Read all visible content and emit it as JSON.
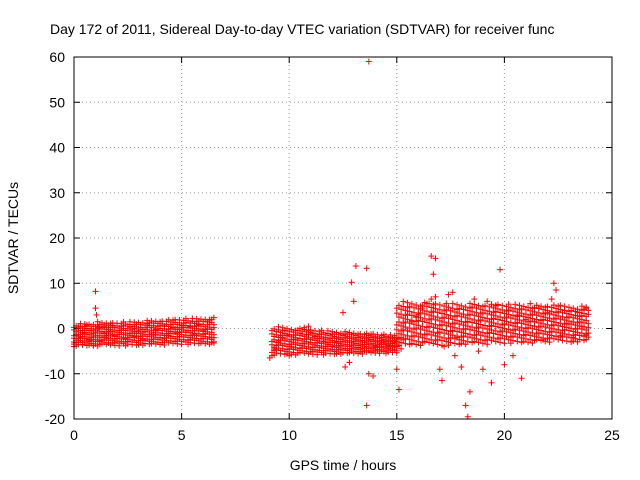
{
  "chart_data": {
    "type": "scatter",
    "title": "Day 172 of 2011, Sidereal Day-to-day VTEC variation (SDTVAR) for receiver func",
    "xlabel": "GPS time / hours",
    "ylabel": "SDTVAR / TECUs",
    "xlim": [
      0,
      25
    ],
    "ylim": [
      -20,
      60
    ],
    "xticks": [
      0,
      5,
      10,
      15,
      20,
      25
    ],
    "yticks": [
      -20,
      -10,
      0,
      10,
      20,
      30,
      40,
      50,
      60
    ],
    "grid": true,
    "marker": "+",
    "color": "#ff0000",
    "series": [
      {
        "name": "SDTVAR",
        "points": [
          [
            0.0,
            -3.0
          ],
          [
            0.1,
            -1.5
          ],
          [
            0.2,
            0.5
          ],
          [
            0.3,
            -2.0
          ],
          [
            0.4,
            -3.5
          ],
          [
            0.5,
            -1.0
          ],
          [
            0.6,
            0.8
          ],
          [
            0.7,
            -2.5
          ],
          [
            0.8,
            -0.5
          ],
          [
            0.9,
            -3.8
          ],
          [
            1.0,
            8.2
          ],
          [
            1.0,
            4.5
          ],
          [
            1.05,
            3.0
          ],
          [
            1.1,
            1.5
          ],
          [
            1.15,
            0.2
          ],
          [
            1.2,
            -2.8
          ],
          [
            1.3,
            -1.0
          ],
          [
            1.4,
            0.5
          ],
          [
            1.5,
            -2.0
          ],
          [
            1.6,
            -3.2
          ],
          [
            1.7,
            -0.8
          ],
          [
            1.8,
            0.6
          ],
          [
            1.9,
            -1.5
          ],
          [
            2.0,
            -2.8
          ],
          [
            2.2,
            -0.4
          ],
          [
            2.4,
            -2.2
          ],
          [
            2.6,
            0.3
          ],
          [
            2.8,
            -1.8
          ],
          [
            3.0,
            -0.5
          ],
          [
            3.2,
            -2.5
          ],
          [
            3.4,
            0.8
          ],
          [
            3.6,
            -1.2
          ],
          [
            3.8,
            -0.2
          ],
          [
            4.0,
            -2.0
          ],
          [
            4.2,
            0.5
          ],
          [
            4.4,
            -1.5
          ],
          [
            4.6,
            0.2
          ],
          [
            4.8,
            -1.0
          ],
          [
            5.0,
            0.6
          ],
          [
            5.2,
            -0.8
          ],
          [
            5.4,
            0.4
          ],
          [
            5.6,
            -1.2
          ],
          [
            5.8,
            0.8
          ],
          [
            6.0,
            -0.5
          ],
          [
            6.2,
            1.5
          ],
          [
            6.3,
            2.0
          ],
          [
            6.4,
            -2.0
          ],
          [
            6.5,
            -3.2
          ],
          [
            9.1,
            -6.5
          ],
          [
            9.3,
            -4.5
          ],
          [
            9.5,
            -3.0
          ],
          [
            9.7,
            -2.0
          ],
          [
            9.9,
            -1.5
          ],
          [
            10.0,
            -6.0
          ],
          [
            10.1,
            -4.0
          ],
          [
            10.3,
            -2.5
          ],
          [
            10.5,
            -1.0
          ],
          [
            10.7,
            0.2
          ],
          [
            10.9,
            0.5
          ],
          [
            11.0,
            -0.8
          ],
          [
            11.2,
            -1.8
          ],
          [
            11.4,
            -2.2
          ],
          [
            11.6,
            -2.8
          ],
          [
            11.8,
            -3.5
          ],
          [
            12.0,
            -4.0
          ],
          [
            12.2,
            -3.0
          ],
          [
            12.4,
            -3.8
          ],
          [
            12.5,
            3.5
          ],
          [
            12.6,
            -8.5
          ],
          [
            12.8,
            -4.5
          ],
          [
            12.8,
            -7.5
          ],
          [
            12.9,
            10.2
          ],
          [
            13.0,
            6.0
          ],
          [
            13.1,
            13.8
          ],
          [
            13.2,
            -4.2
          ],
          [
            13.4,
            -3.5
          ],
          [
            13.6,
            13.3
          ],
          [
            13.7,
            -10.0
          ],
          [
            13.7,
            59.0
          ],
          [
            13.6,
            -17.0
          ],
          [
            13.8,
            -5.0
          ],
          [
            13.9,
            -10.5
          ],
          [
            14.0,
            -4.0
          ],
          [
            14.2,
            -3.5
          ],
          [
            14.4,
            -3.0
          ],
          [
            14.6,
            -3.8
          ],
          [
            14.8,
            -4.0
          ],
          [
            15.0,
            -9.0
          ],
          [
            15.1,
            -13.5
          ],
          [
            15.2,
            -4.5
          ],
          [
            15.3,
            -2.5
          ],
          [
            15.5,
            -0.5
          ],
          [
            15.7,
            1.5
          ],
          [
            15.9,
            2.5
          ],
          [
            16.0,
            3.0
          ],
          [
            16.2,
            4.5
          ],
          [
            16.4,
            5.5
          ],
          [
            16.6,
            6.5
          ],
          [
            16.8,
            7.0
          ],
          [
            16.7,
            12.0
          ],
          [
            16.6,
            16.0
          ],
          [
            16.8,
            15.5
          ],
          [
            16.9,
            -1.0
          ],
          [
            17.0,
            -9.0
          ],
          [
            17.1,
            -11.5
          ],
          [
            17.2,
            -4.0
          ],
          [
            17.4,
            7.5
          ],
          [
            17.6,
            8.0
          ],
          [
            17.7,
            -6.0
          ],
          [
            17.8,
            -2.0
          ],
          [
            18.0,
            -8.5
          ],
          [
            18.2,
            -17.0
          ],
          [
            18.3,
            -19.5
          ],
          [
            18.4,
            -14.0
          ],
          [
            18.6,
            6.5
          ],
          [
            18.8,
            -5.0
          ],
          [
            19.0,
            -9.0
          ],
          [
            19.2,
            6.0
          ],
          [
            19.4,
            -12.0
          ],
          [
            19.6,
            5.0
          ],
          [
            19.8,
            13.0
          ],
          [
            20.0,
            -8.0
          ],
          [
            20.2,
            4.0
          ],
          [
            20.4,
            -6.0
          ],
          [
            20.6,
            3.0
          ],
          [
            20.8,
            -11.0
          ],
          [
            21.0,
            2.0
          ],
          [
            21.2,
            5.5
          ],
          [
            21.4,
            1.5
          ],
          [
            21.6,
            4.5
          ],
          [
            21.8,
            -2.5
          ],
          [
            22.0,
            3.5
          ],
          [
            22.2,
            6.5
          ],
          [
            22.3,
            10.0
          ],
          [
            22.4,
            8.5
          ],
          [
            22.6,
            -1.5
          ],
          [
            22.8,
            4.0
          ],
          [
            23.0,
            1.0
          ],
          [
            23.2,
            -2.0
          ],
          [
            23.4,
            3.5
          ],
          [
            23.6,
            0.5
          ],
          [
            23.8,
            -1.5
          ],
          [
            23.8,
            4.5
          ]
        ],
        "bands": [
          {
            "x": [
              0.0,
              6.5
            ],
            "lo": [
              -4.0,
              -3.5
            ],
            "hi": [
              1.0,
              2.5
            ]
          },
          {
            "x": [
              9.2,
              15.0
            ],
            "lo": [
              -6.0,
              -5.5
            ],
            "hi": [
              0.5,
              -1.5
            ]
          },
          {
            "x": [
              15.0,
              23.9
            ],
            "lo": [
              -4.0,
              -3.0
            ],
            "hi": [
              6.0,
              5.0
            ]
          }
        ]
      }
    ]
  }
}
